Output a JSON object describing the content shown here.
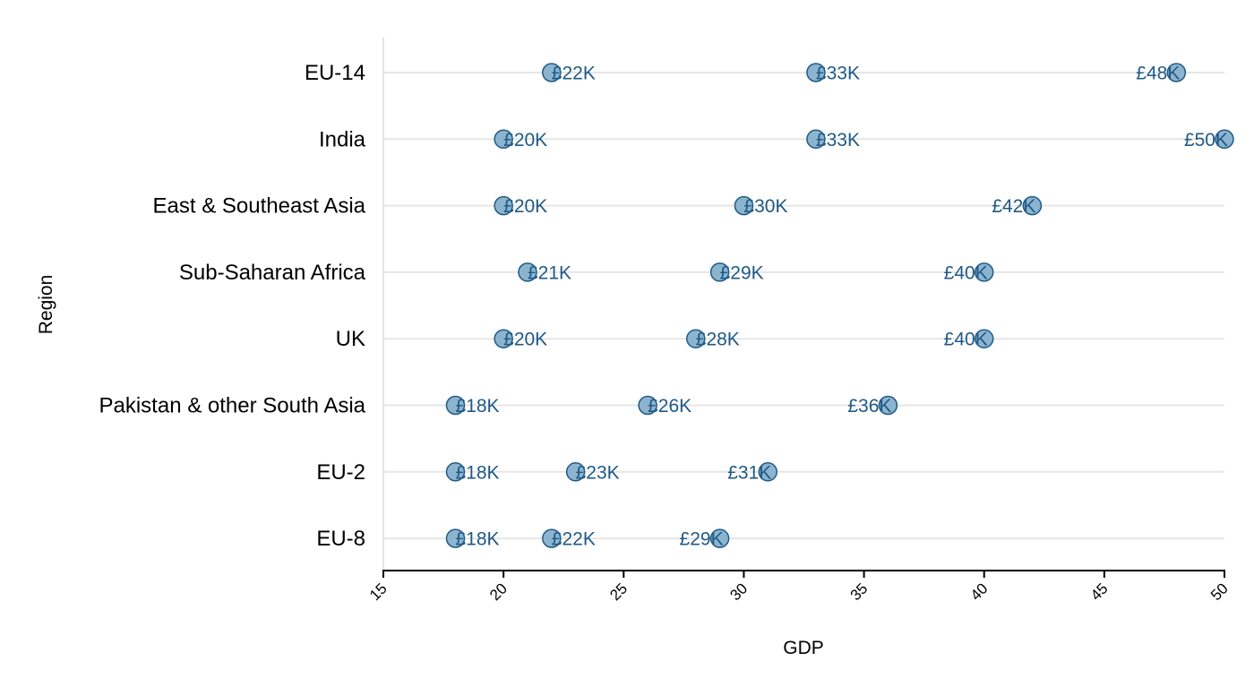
{
  "chart_data": {
    "type": "scatter",
    "xlabel": "GDP",
    "ylabel": "Region",
    "xlim": [
      15,
      50
    ],
    "xticks": [
      "15",
      "20",
      "25",
      "30",
      "35",
      "40",
      "45",
      "50"
    ],
    "grid": "horizontal",
    "marker_color": "#8db4cf",
    "marker_edge_color": "#1f5a86",
    "label_color": "#1f5a86",
    "categories": [
      "EU-14",
      "India",
      "East & Southeast Asia",
      "Sub-Saharan Africa",
      "UK",
      "Pakistan & other South Asia",
      "EU-2",
      "EU-8"
    ],
    "points": [
      {
        "region": "EU-14",
        "values": [
          22,
          33,
          48
        ],
        "labels": [
          "£22K",
          "£33K",
          "£48K"
        ]
      },
      {
        "region": "India",
        "values": [
          20,
          33,
          50
        ],
        "labels": [
          "£20K",
          "£33K",
          "£50K"
        ]
      },
      {
        "region": "East & Southeast Asia",
        "values": [
          20,
          30,
          42
        ],
        "labels": [
          "£20K",
          "£30K",
          "£42K"
        ]
      },
      {
        "region": "Sub-Saharan Africa",
        "values": [
          21,
          29,
          40
        ],
        "labels": [
          "£21K",
          "£29K",
          "£40K"
        ]
      },
      {
        "region": "UK",
        "values": [
          20,
          28,
          40
        ],
        "labels": [
          "£20K",
          "£28K",
          "£40K"
        ]
      },
      {
        "region": "Pakistan & other South Asia",
        "values": [
          18,
          26,
          36
        ],
        "labels": [
          "£18K",
          "£26K",
          "£36K"
        ]
      },
      {
        "region": "EU-2",
        "values": [
          18,
          23,
          31
        ],
        "labels": [
          "£18K",
          "£23K",
          "£31K"
        ]
      },
      {
        "region": "EU-8",
        "values": [
          18,
          22,
          29
        ],
        "labels": [
          "£18K",
          "£22K",
          "£29K"
        ]
      }
    ]
  }
}
